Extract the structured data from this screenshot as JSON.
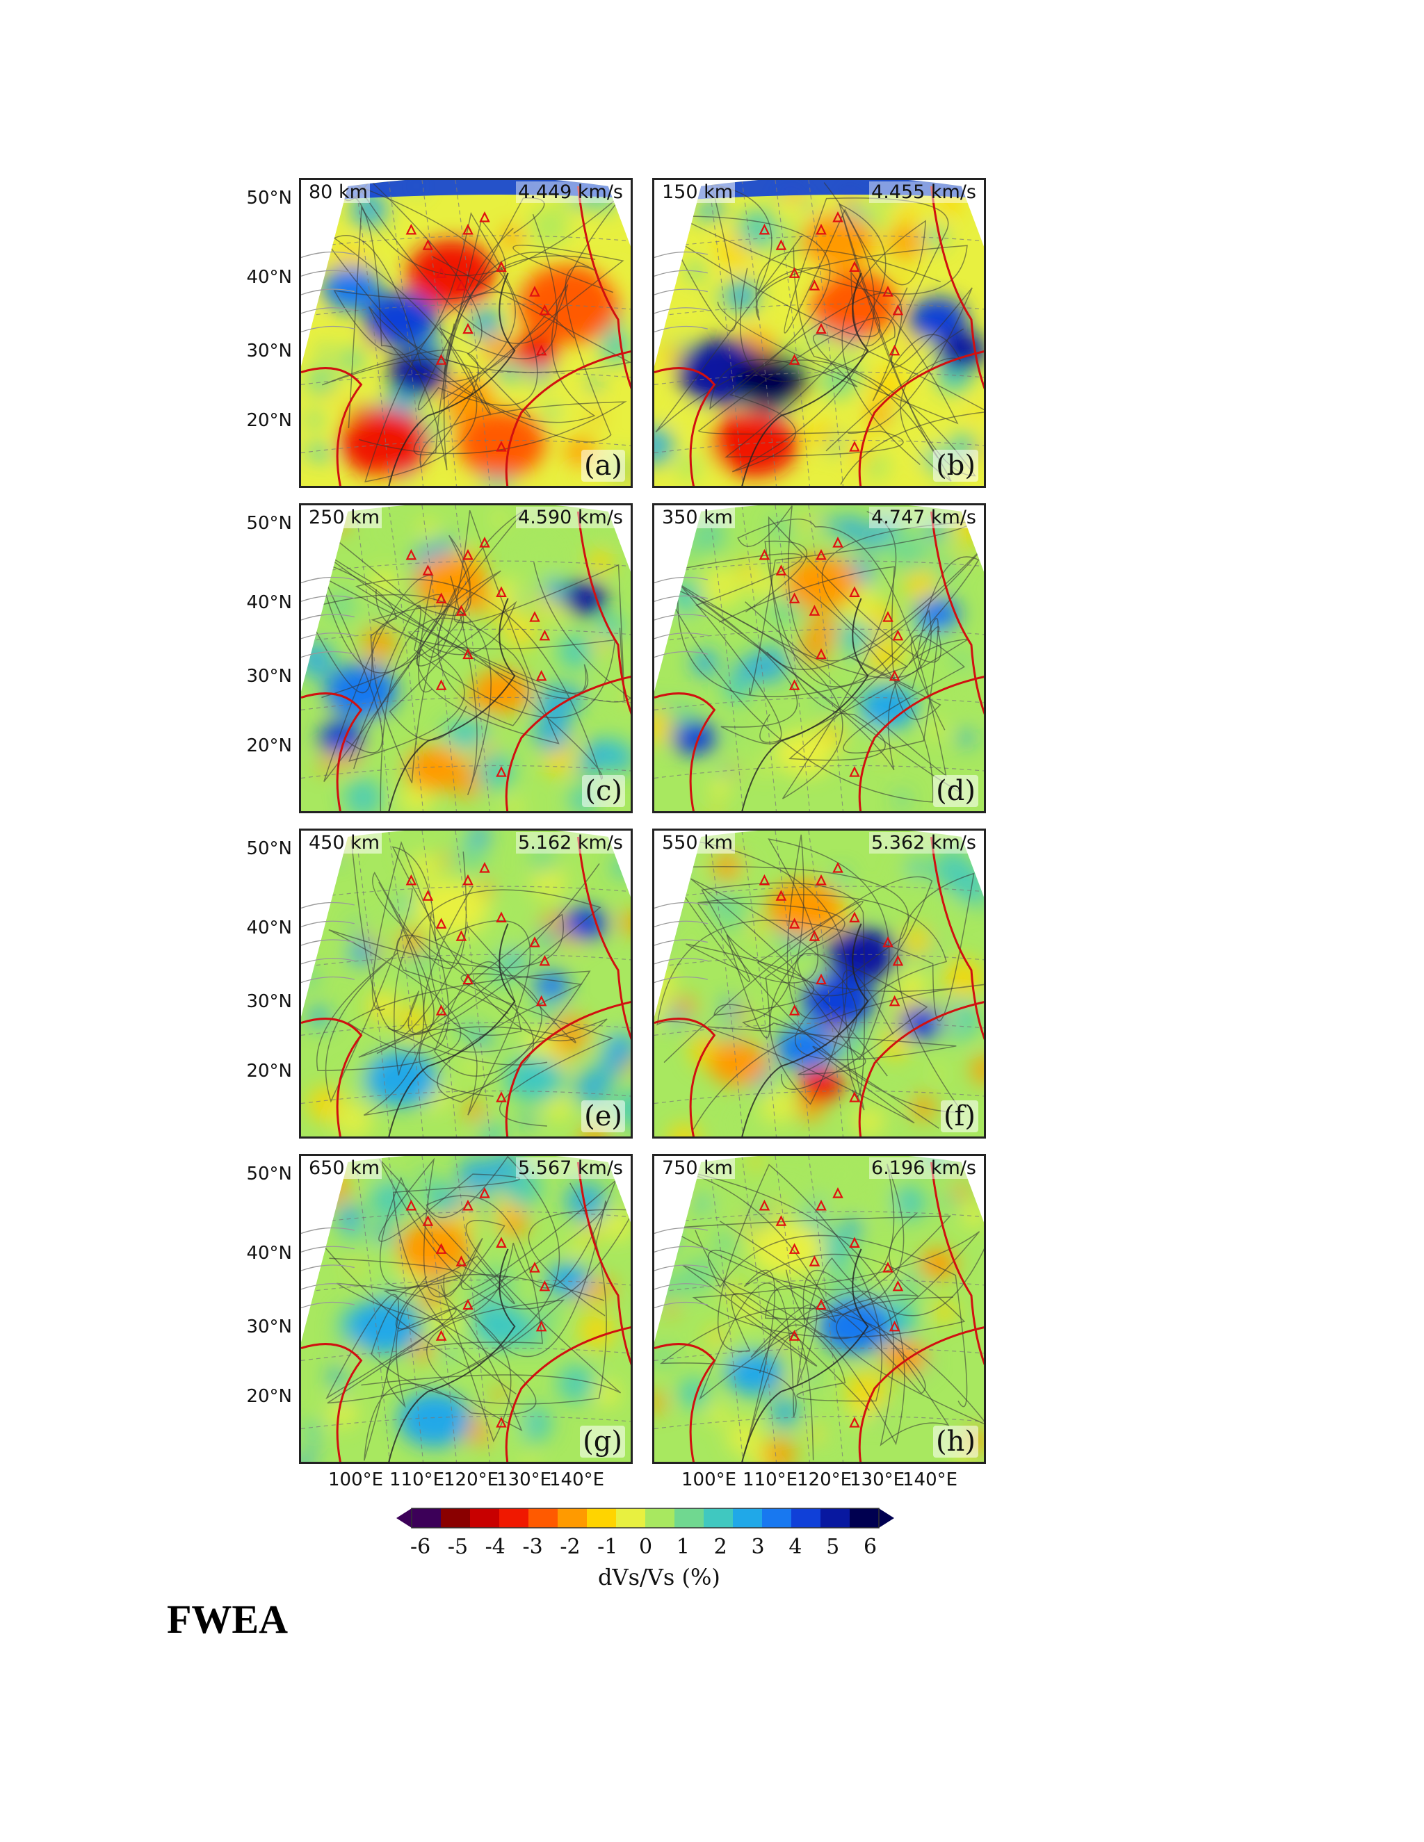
{
  "figure": {
    "panels": [
      {
        "id": "a",
        "depth": "80 km",
        "velocity": "4.449 km/s",
        "label": "(a)"
      },
      {
        "id": "b",
        "depth": "150 km",
        "velocity": "4.455 km/s",
        "label": "(b)"
      },
      {
        "id": "c",
        "depth": "250 km",
        "velocity": "4.590 km/s",
        "label": "(c)"
      },
      {
        "id": "d",
        "depth": "350 km",
        "velocity": "4.747 km/s",
        "label": "(d)"
      },
      {
        "id": "e",
        "depth": "450 km",
        "velocity": "5.162 km/s",
        "label": "(e)"
      },
      {
        "id": "f",
        "depth": "550 km",
        "velocity": "5.362 km/s",
        "label": "(f)"
      },
      {
        "id": "g",
        "depth": "650 km",
        "velocity": "5.567 km/s",
        "label": "(g)"
      },
      {
        "id": "h",
        "depth": "750 km",
        "velocity": "6.196 km/s",
        "label": "(h)"
      }
    ],
    "lat_labels": [
      "50°N",
      "40°N",
      "30°N",
      "20°N"
    ],
    "lon_labels": [
      "100°E",
      "110°E",
      "120°E",
      "130°E",
      "140°E"
    ],
    "colorbar": {
      "ticks": [
        "-6",
        "-5",
        "-4",
        "-3",
        "-2",
        "-1",
        "0",
        "1",
        "2",
        "3",
        "4",
        "5",
        "6"
      ],
      "title": "dVs/Vs (%)",
      "colors": [
        "#3c0058",
        "#8a0000",
        "#c80000",
        "#f01800",
        "#ff5a00",
        "#ff9a00",
        "#ffd400",
        "#e8f040",
        "#a8e860",
        "#70d890",
        "#40c8c0",
        "#20a8e8",
        "#1878f0",
        "#1040d8",
        "#0818a0",
        "#000050"
      ]
    }
  },
  "heading": "FWEA"
}
